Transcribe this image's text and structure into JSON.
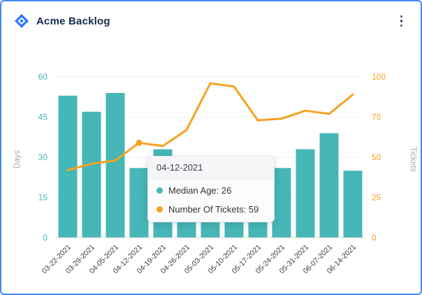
{
  "header": {
    "title": "Acme Backlog"
  },
  "colors": {
    "frame_border": "#4286f5",
    "logo_blue": "#2d7bf4",
    "bar_teal": "#46b6b6",
    "line_orange": "#f7a120",
    "left_axis_text": "#46b6b6",
    "right_axis_text": "#f7a120",
    "axis_title_text": "#a7adb5",
    "x_label_text": "#3c3c3c"
  },
  "chart_data": {
    "type": "combo",
    "categories": [
      "03-22-2021",
      "03-29-2021",
      "04-05-2021",
      "04-12-2021",
      "04-19-2021",
      "04-26-2021",
      "05-03-2021",
      "05-10-2021",
      "05-17-2021",
      "05-24-2021",
      "05-31-2021",
      "06-07-2021",
      "06-14-2021"
    ],
    "series": [
      {
        "name": "Median Age",
        "type": "bar",
        "axis": "left",
        "color": "#46b6b6",
        "values": [
          53,
          47,
          54,
          26,
          33,
          9,
          10,
          9,
          11,
          26,
          33,
          39,
          25
        ]
      },
      {
        "name": "Number Of Tickets",
        "type": "line",
        "axis": "right",
        "color": "#f7a120",
        "values": [
          42,
          46,
          48,
          59,
          57,
          67,
          96,
          94,
          73,
          74,
          79,
          77,
          89
        ]
      }
    ],
    "left_axis": {
      "title": "Days",
      "range": [
        0,
        60
      ],
      "ticks": [
        0,
        15,
        30,
        45,
        60
      ]
    },
    "right_axis": {
      "title": "Tickets",
      "range": [
        0,
        100
      ],
      "ticks": [
        0,
        25,
        50,
        75,
        100
      ]
    },
    "legend_position": "none"
  },
  "tooltip": {
    "title": "04-12-2021",
    "highlight_index": 3,
    "items": [
      {
        "label": "Median Age",
        "value": 26,
        "text": "Median Age: 26",
        "color": "#46b6b6"
      },
      {
        "label": "Number Of Tickets",
        "value": 59,
        "text": "Number Of Tickets: 59",
        "color": "#f7a120"
      }
    ]
  }
}
